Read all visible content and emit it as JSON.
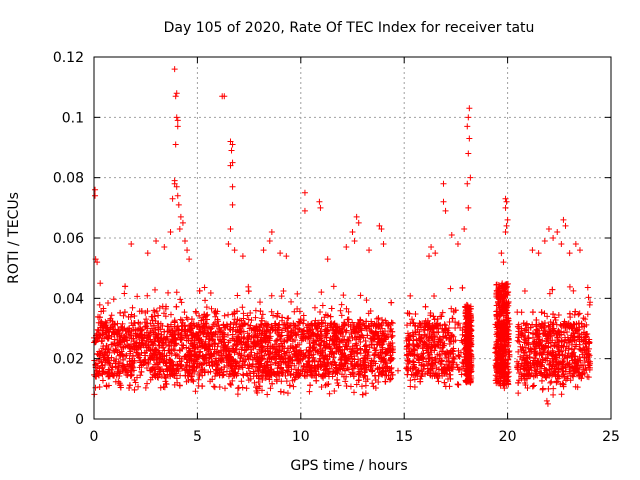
{
  "chart_data": {
    "type": "scatter",
    "title": "Day 105 of 2020, Rate Of TEC Index for receiver tatu",
    "xlabel": "GPS time / hours",
    "ylabel": "ROTI / TECUs",
    "xlim": [
      0,
      25
    ],
    "ylim": [
      0,
      0.12
    ],
    "x_ticks": [
      0,
      5,
      10,
      15,
      20,
      25
    ],
    "x_tick_labels": [
      "0",
      "5",
      "10",
      "15",
      "20",
      "25"
    ],
    "y_ticks": [
      0,
      0.02,
      0.04,
      0.06,
      0.08,
      0.1,
      0.12
    ],
    "y_tick_labels": [
      "0",
      "0.02",
      "0.04",
      "0.06",
      "0.08",
      "0.1",
      "0.12"
    ],
    "grid": true,
    "marker": "+",
    "color": "#ff0000",
    "series": [
      {
        "name": "ROTI",
        "summary": "Dense band of ROTI values between about 0.01 and 0.04 TECU/s across 0–24 h, with data gaps near 14.5–15 h and 18.2–19.4 h",
        "points": [
          [
            0.05,
            0.076
          ],
          [
            0.05,
            0.074
          ],
          [
            0.08,
            0.053
          ],
          [
            0.15,
            0.052
          ],
          [
            0.3,
            0.045
          ],
          [
            1.8,
            0.058
          ],
          [
            2.6,
            0.055
          ],
          [
            3.0,
            0.059
          ],
          [
            3.4,
            0.057
          ],
          [
            3.9,
            0.116
          ],
          [
            3.95,
            0.107
          ],
          [
            4.0,
            0.108
          ],
          [
            4.0,
            0.1
          ],
          [
            4.05,
            0.099
          ],
          [
            4.05,
            0.097
          ],
          [
            3.95,
            0.091
          ],
          [
            3.9,
            0.079
          ],
          [
            3.9,
            0.078
          ],
          [
            4.0,
            0.077
          ],
          [
            4.05,
            0.074
          ],
          [
            3.8,
            0.073
          ],
          [
            4.1,
            0.071
          ],
          [
            4.2,
            0.067
          ],
          [
            4.3,
            0.065
          ],
          [
            4.15,
            0.063
          ],
          [
            4.4,
            0.059
          ],
          [
            4.5,
            0.056
          ],
          [
            3.7,
            0.062
          ],
          [
            4.6,
            0.053
          ],
          [
            6.2,
            0.107
          ],
          [
            6.3,
            0.107
          ],
          [
            6.6,
            0.092
          ],
          [
            6.7,
            0.091
          ],
          [
            6.65,
            0.089
          ],
          [
            6.7,
            0.085
          ],
          [
            6.6,
            0.084
          ],
          [
            6.7,
            0.077
          ],
          [
            6.7,
            0.071
          ],
          [
            6.6,
            0.063
          ],
          [
            6.5,
            0.058
          ],
          [
            6.8,
            0.056
          ],
          [
            7.2,
            0.054
          ],
          [
            8.2,
            0.056
          ],
          [
            8.5,
            0.059
          ],
          [
            8.6,
            0.062
          ],
          [
            9.0,
            0.055
          ],
          [
            9.3,
            0.054
          ],
          [
            10.2,
            0.075
          ],
          [
            10.2,
            0.069
          ],
          [
            10.9,
            0.072
          ],
          [
            10.95,
            0.07
          ],
          [
            11.3,
            0.053
          ],
          [
            12.2,
            0.057
          ],
          [
            12.5,
            0.062
          ],
          [
            12.7,
            0.067
          ],
          [
            12.8,
            0.065
          ],
          [
            12.6,
            0.059
          ],
          [
            13.3,
            0.056
          ],
          [
            13.8,
            0.064
          ],
          [
            13.9,
            0.063
          ],
          [
            14.0,
            0.058
          ],
          [
            16.3,
            0.057
          ],
          [
            16.5,
            0.055
          ],
          [
            16.2,
            0.054
          ],
          [
            16.9,
            0.078
          ],
          [
            16.9,
            0.072
          ],
          [
            17.0,
            0.069
          ],
          [
            17.3,
            0.061
          ],
          [
            17.6,
            0.058
          ],
          [
            17.9,
            0.063
          ],
          [
            18.15,
            0.103
          ],
          [
            18.1,
            0.1
          ],
          [
            18.05,
            0.097
          ],
          [
            18.15,
            0.093
          ],
          [
            18.1,
            0.088
          ],
          [
            18.2,
            0.08
          ],
          [
            18.05,
            0.078
          ],
          [
            18.1,
            0.07
          ],
          [
            19.7,
            0.055
          ],
          [
            19.8,
            0.052
          ],
          [
            19.9,
            0.073
          ],
          [
            19.95,
            0.072
          ],
          [
            19.9,
            0.07
          ],
          [
            20.0,
            0.066
          ],
          [
            19.95,
            0.064
          ],
          [
            19.9,
            0.062
          ],
          [
            21.2,
            0.056
          ],
          [
            21.5,
            0.055
          ],
          [
            21.8,
            0.059
          ],
          [
            22.0,
            0.063
          ],
          [
            22.2,
            0.06
          ],
          [
            22.4,
            0.062
          ],
          [
            22.6,
            0.058
          ],
          [
            22.7,
            0.066
          ],
          [
            22.8,
            0.064
          ],
          [
            23.0,
            0.055
          ],
          [
            23.3,
            0.058
          ],
          [
            23.5,
            0.056
          ],
          [
            21.9,
            0.006
          ],
          [
            21.95,
            0.005
          ],
          [
            22.2,
            0.008
          ],
          [
            14.7,
            0.016
          ]
        ]
      }
    ]
  }
}
